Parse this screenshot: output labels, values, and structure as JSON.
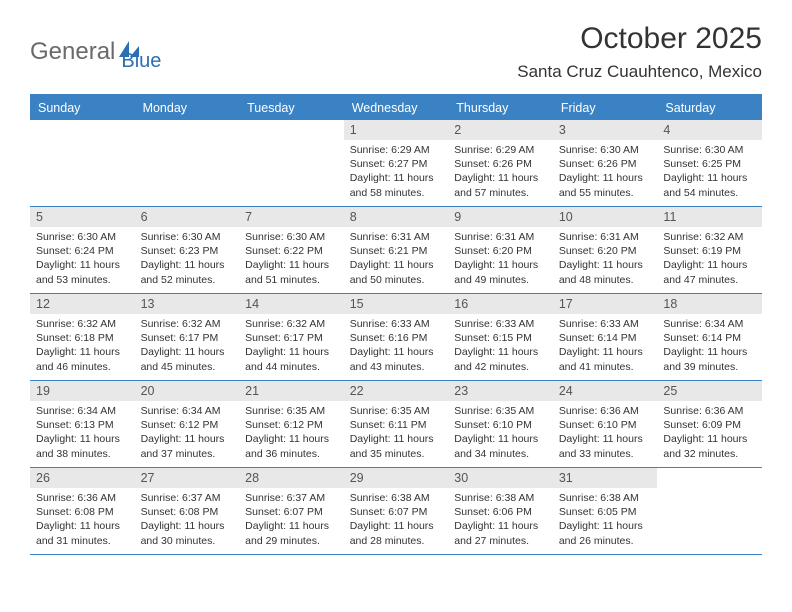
{
  "logo": {
    "text_a": "General",
    "text_b": "Blue"
  },
  "title": "October 2025",
  "location": "Santa Cruz Cuauhtenco, Mexico",
  "colors": {
    "header_bg": "#3b82c4",
    "header_text": "#ffffff",
    "daynum_bg": "#e8e8e8",
    "row_border": "#3b82c4",
    "body_text": "#333333"
  },
  "day_headers": [
    "Sunday",
    "Monday",
    "Tuesday",
    "Wednesday",
    "Thursday",
    "Friday",
    "Saturday"
  ],
  "weeks": [
    [
      {
        "n": "",
        "sr": "",
        "ss": "",
        "dl": ""
      },
      {
        "n": "",
        "sr": "",
        "ss": "",
        "dl": ""
      },
      {
        "n": "",
        "sr": "",
        "ss": "",
        "dl": ""
      },
      {
        "n": "1",
        "sr": "Sunrise: 6:29 AM",
        "ss": "Sunset: 6:27 PM",
        "dl": "Daylight: 11 hours and 58 minutes."
      },
      {
        "n": "2",
        "sr": "Sunrise: 6:29 AM",
        "ss": "Sunset: 6:26 PM",
        "dl": "Daylight: 11 hours and 57 minutes."
      },
      {
        "n": "3",
        "sr": "Sunrise: 6:30 AM",
        "ss": "Sunset: 6:26 PM",
        "dl": "Daylight: 11 hours and 55 minutes."
      },
      {
        "n": "4",
        "sr": "Sunrise: 6:30 AM",
        "ss": "Sunset: 6:25 PM",
        "dl": "Daylight: 11 hours and 54 minutes."
      }
    ],
    [
      {
        "n": "5",
        "sr": "Sunrise: 6:30 AM",
        "ss": "Sunset: 6:24 PM",
        "dl": "Daylight: 11 hours and 53 minutes."
      },
      {
        "n": "6",
        "sr": "Sunrise: 6:30 AM",
        "ss": "Sunset: 6:23 PM",
        "dl": "Daylight: 11 hours and 52 minutes."
      },
      {
        "n": "7",
        "sr": "Sunrise: 6:30 AM",
        "ss": "Sunset: 6:22 PM",
        "dl": "Daylight: 11 hours and 51 minutes."
      },
      {
        "n": "8",
        "sr": "Sunrise: 6:31 AM",
        "ss": "Sunset: 6:21 PM",
        "dl": "Daylight: 11 hours and 50 minutes."
      },
      {
        "n": "9",
        "sr": "Sunrise: 6:31 AM",
        "ss": "Sunset: 6:20 PM",
        "dl": "Daylight: 11 hours and 49 minutes."
      },
      {
        "n": "10",
        "sr": "Sunrise: 6:31 AM",
        "ss": "Sunset: 6:20 PM",
        "dl": "Daylight: 11 hours and 48 minutes."
      },
      {
        "n": "11",
        "sr": "Sunrise: 6:32 AM",
        "ss": "Sunset: 6:19 PM",
        "dl": "Daylight: 11 hours and 47 minutes."
      }
    ],
    [
      {
        "n": "12",
        "sr": "Sunrise: 6:32 AM",
        "ss": "Sunset: 6:18 PM",
        "dl": "Daylight: 11 hours and 46 minutes."
      },
      {
        "n": "13",
        "sr": "Sunrise: 6:32 AM",
        "ss": "Sunset: 6:17 PM",
        "dl": "Daylight: 11 hours and 45 minutes."
      },
      {
        "n": "14",
        "sr": "Sunrise: 6:32 AM",
        "ss": "Sunset: 6:17 PM",
        "dl": "Daylight: 11 hours and 44 minutes."
      },
      {
        "n": "15",
        "sr": "Sunrise: 6:33 AM",
        "ss": "Sunset: 6:16 PM",
        "dl": "Daylight: 11 hours and 43 minutes."
      },
      {
        "n": "16",
        "sr": "Sunrise: 6:33 AM",
        "ss": "Sunset: 6:15 PM",
        "dl": "Daylight: 11 hours and 42 minutes."
      },
      {
        "n": "17",
        "sr": "Sunrise: 6:33 AM",
        "ss": "Sunset: 6:14 PM",
        "dl": "Daylight: 11 hours and 41 minutes."
      },
      {
        "n": "18",
        "sr": "Sunrise: 6:34 AM",
        "ss": "Sunset: 6:14 PM",
        "dl": "Daylight: 11 hours and 39 minutes."
      }
    ],
    [
      {
        "n": "19",
        "sr": "Sunrise: 6:34 AM",
        "ss": "Sunset: 6:13 PM",
        "dl": "Daylight: 11 hours and 38 minutes."
      },
      {
        "n": "20",
        "sr": "Sunrise: 6:34 AM",
        "ss": "Sunset: 6:12 PM",
        "dl": "Daylight: 11 hours and 37 minutes."
      },
      {
        "n": "21",
        "sr": "Sunrise: 6:35 AM",
        "ss": "Sunset: 6:12 PM",
        "dl": "Daylight: 11 hours and 36 minutes."
      },
      {
        "n": "22",
        "sr": "Sunrise: 6:35 AM",
        "ss": "Sunset: 6:11 PM",
        "dl": "Daylight: 11 hours and 35 minutes."
      },
      {
        "n": "23",
        "sr": "Sunrise: 6:35 AM",
        "ss": "Sunset: 6:10 PM",
        "dl": "Daylight: 11 hours and 34 minutes."
      },
      {
        "n": "24",
        "sr": "Sunrise: 6:36 AM",
        "ss": "Sunset: 6:10 PM",
        "dl": "Daylight: 11 hours and 33 minutes."
      },
      {
        "n": "25",
        "sr": "Sunrise: 6:36 AM",
        "ss": "Sunset: 6:09 PM",
        "dl": "Daylight: 11 hours and 32 minutes."
      }
    ],
    [
      {
        "n": "26",
        "sr": "Sunrise: 6:36 AM",
        "ss": "Sunset: 6:08 PM",
        "dl": "Daylight: 11 hours and 31 minutes."
      },
      {
        "n": "27",
        "sr": "Sunrise: 6:37 AM",
        "ss": "Sunset: 6:08 PM",
        "dl": "Daylight: 11 hours and 30 minutes."
      },
      {
        "n": "28",
        "sr": "Sunrise: 6:37 AM",
        "ss": "Sunset: 6:07 PM",
        "dl": "Daylight: 11 hours and 29 minutes."
      },
      {
        "n": "29",
        "sr": "Sunrise: 6:38 AM",
        "ss": "Sunset: 6:07 PM",
        "dl": "Daylight: 11 hours and 28 minutes."
      },
      {
        "n": "30",
        "sr": "Sunrise: 6:38 AM",
        "ss": "Sunset: 6:06 PM",
        "dl": "Daylight: 11 hours and 27 minutes."
      },
      {
        "n": "31",
        "sr": "Sunrise: 6:38 AM",
        "ss": "Sunset: 6:05 PM",
        "dl": "Daylight: 11 hours and 26 minutes."
      },
      {
        "n": "",
        "sr": "",
        "ss": "",
        "dl": ""
      }
    ]
  ]
}
